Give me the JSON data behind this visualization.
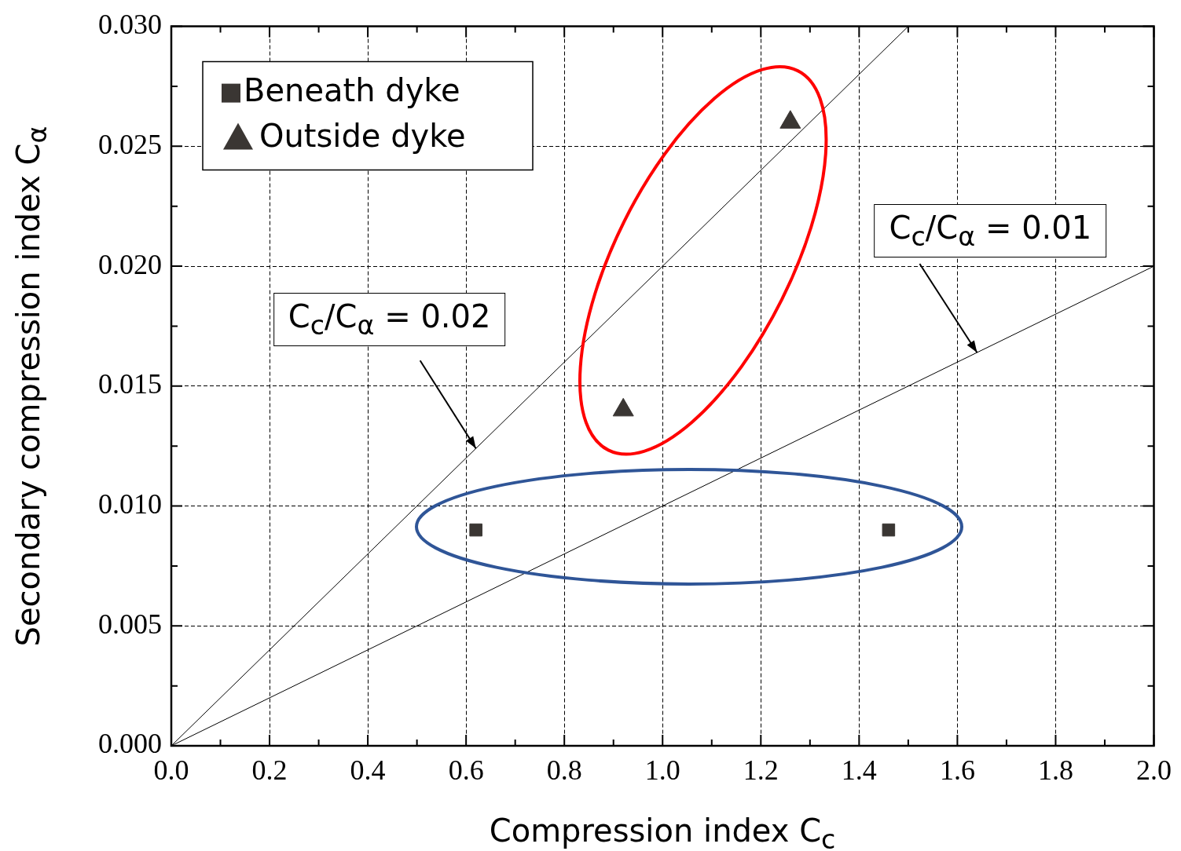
{
  "chart_data": {
    "type": "scatter",
    "xlabel": "Compression index C$_{c}$",
    "ylabel": "Secondary compression index C$_{α}$",
    "series": [
      {
        "name": "Beneath dyke",
        "type": "scatter",
        "marker": "square",
        "color": "#3a3633",
        "x": [
          0.62,
          1.46
        ],
        "values": [
          0.009,
          0.009
        ]
      },
      {
        "name": "Outside dyke",
        "type": "scatter",
        "marker": "triangle",
        "color": "#3a3633",
        "x": [
          0.92,
          1.26
        ],
        "values": [
          0.014,
          0.026
        ]
      },
      {
        "type": "line",
        "marker": "none",
        "line_style": "solid",
        "color": "#000000",
        "x": [
          0,
          1.5
        ],
        "values": [
          0,
          0.03
        ]
      },
      {
        "type": "line",
        "marker": "none",
        "line_style": "solid",
        "color": "#000000",
        "x": [
          0,
          2
        ],
        "values": [
          0,
          0.02
        ]
      }
    ],
    "annotations": [
      {
        "text": "C$_{c}$/C$_{α}$ = 0.02",
        "x": 0.62,
        "y": 0.0124
      },
      {
        "text": "C$_{c}$/C$_{α}$ = 0.01",
        "x": 1.64,
        "y": 0.0164
      }
    ],
    "xlim": [
      0,
      2
    ],
    "ylim": [
      0,
      0.03
    ],
    "xticks": [
      {
        "value": 0,
        "label": "0.0"
      },
      {
        "value": 0.2,
        "label": "0.2"
      },
      {
        "value": 0.4,
        "label": "0.4"
      },
      {
        "value": 0.6,
        "label": "0.6"
      },
      {
        "value": 0.8,
        "label": "0.8"
      },
      {
        "value": 1,
        "label": "1.0"
      },
      {
        "value": 1.2,
        "label": "1.2"
      },
      {
        "value": 1.4,
        "label": "1.4"
      },
      {
        "value": 1.6,
        "label": "1.6"
      },
      {
        "value": 1.8,
        "label": "1.8"
      },
      {
        "value": 2,
        "label": "2.0"
      }
    ],
    "yticks": [
      {
        "value": 0,
        "label": "0.000"
      },
      {
        "value": 0.005,
        "label": "0.005"
      },
      {
        "value": 0.01,
        "label": "0.010"
      },
      {
        "value": 0.015,
        "label": "0.015"
      },
      {
        "value": 0.02,
        "label": "0.020"
      },
      {
        "value": 0.025,
        "label": "0.025"
      },
      {
        "value": 0.03,
        "label": "0.030"
      }
    ],
    "grid": true,
    "legend": "top left"
  }
}
